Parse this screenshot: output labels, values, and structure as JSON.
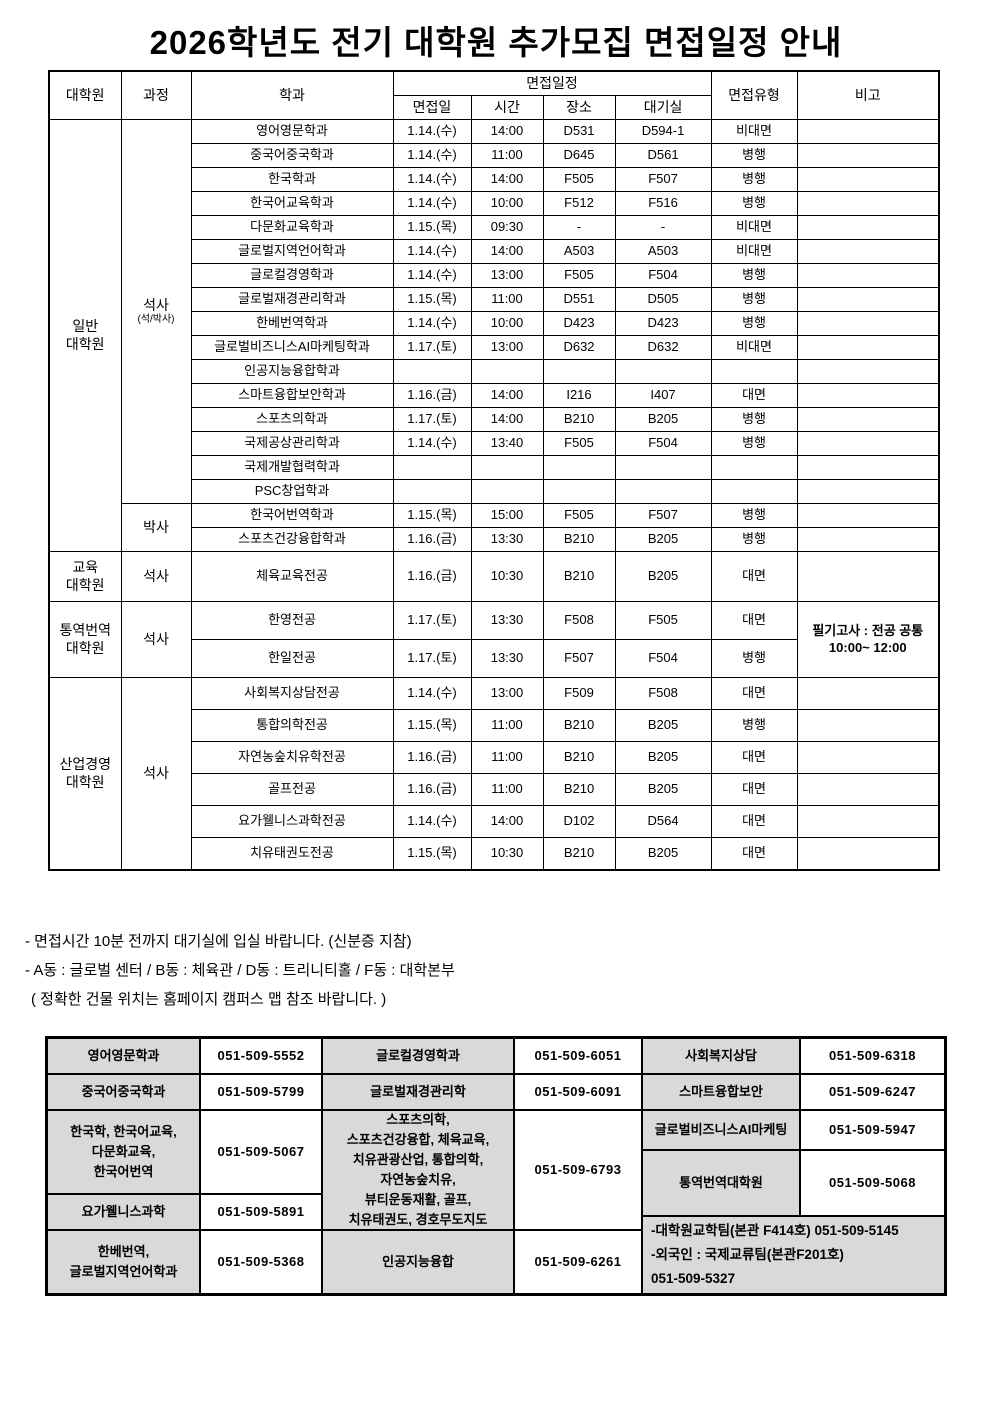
{
  "title": "2026학년도 전기 대학원 추가모집 면접일정 안내",
  "schedule": {
    "headers": {
      "school": "대학원",
      "track": "과정",
      "dept": "학과",
      "schedule": "면접일정",
      "date": "면접일",
      "time": "시간",
      "room": "장소",
      "wait": "대기실",
      "type": "면접유형",
      "note": "비고"
    },
    "groups": [
      {
        "school": "일반\n대학원",
        "tracks": [
          {
            "label": "석사",
            "sub": "(석/박사)",
            "rows": [
              {
                "dept": "영어영문학과",
                "date": "1.14.(수)",
                "time": "14:00",
                "room": "D531",
                "wait": "D594-1",
                "type": "비대면",
                "note": ""
              },
              {
                "dept": "중국어중국학과",
                "date": "1.14.(수)",
                "time": "11:00",
                "room": "D645",
                "wait": "D561",
                "type": "병행",
                "note": ""
              },
              {
                "dept": "한국학과",
                "date": "1.14.(수)",
                "time": "14:00",
                "room": "F505",
                "wait": "F507",
                "type": "병행",
                "note": ""
              },
              {
                "dept": "한국어교육학과",
                "date": "1.14.(수)",
                "time": "10:00",
                "room": "F512",
                "wait": "F516",
                "type": "병행",
                "note": ""
              },
              {
                "dept": "다문화교육학과",
                "date": "1.15.(목)",
                "time": "09:30",
                "room": "-",
                "wait": "-",
                "type": "비대면",
                "note": ""
              },
              {
                "dept": "글로벌지역언어학과",
                "date": "1.14.(수)",
                "time": "14:00",
                "room": "A503",
                "wait": "A503",
                "type": "비대면",
                "note": ""
              },
              {
                "dept": "글로컬경영학과",
                "date": "1.14.(수)",
                "time": "13:00",
                "room": "F505",
                "wait": "F504",
                "type": "병행",
                "note": ""
              },
              {
                "dept": "글로벌재경관리학과",
                "date": "1.15.(목)",
                "time": "11:00",
                "room": "D551",
                "wait": "D505",
                "type": "병행",
                "note": ""
              },
              {
                "dept": "한베번역학과",
                "date": "1.14.(수)",
                "time": "10:00",
                "room": "D423",
                "wait": "D423",
                "type": "병행",
                "note": ""
              },
              {
                "dept": "글로벌비즈니스AI마케팅학과",
                "date": "1.17.(토)",
                "time": "13:00",
                "room": "D632",
                "wait": "D632",
                "type": "비대면",
                "note": ""
              },
              {
                "dept": "인공지능융합학과",
                "date": "",
                "time": "",
                "room": "",
                "wait": "",
                "type": "",
                "note": ""
              },
              {
                "dept": "스마트융합보안학과",
                "date": "1.16.(금)",
                "time": "14:00",
                "room": "I216",
                "wait": "I407",
                "type": "대면",
                "note": ""
              },
              {
                "dept": "스포츠의학과",
                "date": "1.17.(토)",
                "time": "14:00",
                "room": "B210",
                "wait": "B205",
                "type": "병행",
                "note": ""
              },
              {
                "dept": "국제공상관리학과",
                "date": "1.14.(수)",
                "time": "13:40",
                "room": "F505",
                "wait": "F504",
                "type": "병행",
                "note": ""
              },
              {
                "dept": "국제개발협력학과",
                "date": "",
                "time": "",
                "room": "",
                "wait": "",
                "type": "",
                "note": ""
              },
              {
                "dept": "PSC창업학과",
                "date": "",
                "time": "",
                "room": "",
                "wait": "",
                "type": "",
                "note": ""
              }
            ]
          },
          {
            "label": "박사",
            "rows": [
              {
                "dept": "한국어번역학과",
                "date": "1.15.(목)",
                "time": "15:00",
                "room": "F505",
                "wait": "F507",
                "type": "병행",
                "note": ""
              },
              {
                "dept": "스포츠건강융합학과",
                "date": "1.16.(금)",
                "time": "13:30",
                "room": "B210",
                "wait": "B205",
                "type": "병행",
                "note": ""
              }
            ]
          }
        ]
      },
      {
        "school": "교육\n대학원",
        "tracks": [
          {
            "label": "석사",
            "rows": [
              {
                "dept": "체육교육전공",
                "date": "1.16.(금)",
                "time": "10:30",
                "room": "B210",
                "wait": "B205",
                "type": "대면",
                "note": ""
              }
            ]
          }
        ]
      },
      {
        "school": "통역번역\n대학원",
        "tracks": [
          {
            "label": "석사",
            "rows": [
              {
                "dept": "한영전공",
                "date": "1.17.(토)",
                "time": "13:30",
                "room": "F508",
                "wait": "F505",
                "type": "대면",
                "note": "필기고사 : 전공 공통\n10:00~ 12:00",
                "note_rowspan": 2
              },
              {
                "dept": "한일전공",
                "date": "1.17.(토)",
                "time": "13:30",
                "room": "F507",
                "wait": "F504",
                "type": "병행",
                "note": null
              }
            ]
          }
        ]
      },
      {
        "school": "산업경영\n대학원",
        "tracks": [
          {
            "label": "석사",
            "rows": [
              {
                "dept": "사회복지상담전공",
                "date": "1.14.(수)",
                "time": "13:00",
                "room": "F509",
                "wait": "F508",
                "type": "대면",
                "note": ""
              },
              {
                "dept": "통합의학전공",
                "date": "1.15.(목)",
                "time": "11:00",
                "room": "B210",
                "wait": "B205",
                "type": "병행",
                "note": ""
              },
              {
                "dept": "자연농숲치유학전공",
                "date": "1.16.(금)",
                "time": "11:00",
                "room": "B210",
                "wait": "B205",
                "type": "대면",
                "note": ""
              },
              {
                "dept": "골프전공",
                "date": "1.16.(금)",
                "time": "11:00",
                "room": "B210",
                "wait": "B205",
                "type": "대면",
                "note": ""
              },
              {
                "dept": "요가웰니스과학전공",
                "date": "1.14.(수)",
                "time": "14:00",
                "room": "D102",
                "wait": "D564",
                "type": "대면",
                "note": ""
              },
              {
                "dept": "치유태권도전공",
                "date": "1.15.(목)",
                "time": "10:30",
                "room": "B210",
                "wait": "B205",
                "type": "대면",
                "note": ""
              }
            ]
          }
        ]
      }
    ]
  },
  "notes": [
    "- 면접시간 10분 전까지 대기실에 입실 바랍니다. (신분증 지참)",
    "- A동 : 글로벌 센터 / B동 : 체육관 / D동 : 트리니티홀 /  F동 : 대학본부",
    "( 정확한 건물 위치는 홈페이지 캠퍼스 맵 참조 바랍니다. )"
  ],
  "contacts": {
    "groups": [
      [
        {
          "name": "영어영문학과",
          "phone": "051-509-5552"
        },
        {
          "name": "중국어중국학과",
          "phone": "051-509-5799"
        },
        {
          "name": "한국학, 한국어교육,\n다문화교육,\n한국어번역",
          "phone": "051-509-5067"
        },
        {
          "name": "요가웰니스과학",
          "phone": "051-509-5891"
        },
        {
          "name": "한베번역,\n글로벌지역언어학과",
          "phone": "051-509-5368"
        }
      ],
      [
        {
          "name": "글로컬경영학과",
          "phone": "051-509-6051"
        },
        {
          "name": "글로벌재경관리학",
          "phone": "051-509-6091"
        },
        {
          "name": "스포츠의학,\n스포츠건강융합, 체육교육,\n치유관광산업, 통합의학,\n자연농숲치유,\n뷰티운동재활, 골프,\n치유태권도, 경호무도지도",
          "phone": "051-509-6793"
        },
        {
          "name": "인공지능융합",
          "phone": "051-509-6261"
        }
      ],
      [
        {
          "name": "사회복지상담",
          "phone": "051-509-6318"
        },
        {
          "name": "스마트융합보안",
          "phone": "051-509-6247"
        },
        {
          "name": "글로벌비즈니스AI마케팅",
          "phone": "051-509-5947"
        },
        {
          "name": "통역번역대학원",
          "phone": "051-509-5068"
        },
        {
          "wide": "-대학원교학팀(본관 F414호) 051-509-5145\n-외국인 : 국제교류팀(본관F201호)\n051-509-5327"
        }
      ]
    ]
  }
}
